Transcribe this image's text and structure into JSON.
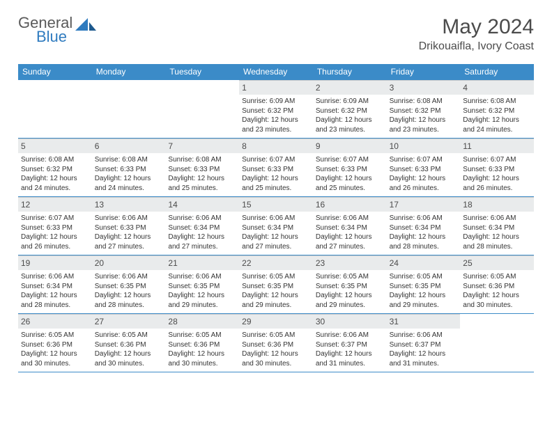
{
  "logo": {
    "general": "General",
    "blue": "Blue"
  },
  "title": "May 2024",
  "location": "Drikouaifla, Ivory Coast",
  "colors": {
    "header_bg": "#3b8bc8",
    "header_text": "#ffffff",
    "daynum_bg": "#e9ebec",
    "week_border": "#3b8bc8",
    "text": "#333333",
    "title_text": "#4b4b4b"
  },
  "day_names": [
    "Sunday",
    "Monday",
    "Tuesday",
    "Wednesday",
    "Thursday",
    "Friday",
    "Saturday"
  ],
  "weeks": [
    [
      {
        "empty": true
      },
      {
        "empty": true
      },
      {
        "empty": true
      },
      {
        "day": "1",
        "sunrise": "Sunrise: 6:09 AM",
        "sunset": "Sunset: 6:32 PM",
        "daylight": "Daylight: 12 hours and 23 minutes."
      },
      {
        "day": "2",
        "sunrise": "Sunrise: 6:09 AM",
        "sunset": "Sunset: 6:32 PM",
        "daylight": "Daylight: 12 hours and 23 minutes."
      },
      {
        "day": "3",
        "sunrise": "Sunrise: 6:08 AM",
        "sunset": "Sunset: 6:32 PM",
        "daylight": "Daylight: 12 hours and 23 minutes."
      },
      {
        "day": "4",
        "sunrise": "Sunrise: 6:08 AM",
        "sunset": "Sunset: 6:32 PM",
        "daylight": "Daylight: 12 hours and 24 minutes."
      }
    ],
    [
      {
        "day": "5",
        "sunrise": "Sunrise: 6:08 AM",
        "sunset": "Sunset: 6:32 PM",
        "daylight": "Daylight: 12 hours and 24 minutes."
      },
      {
        "day": "6",
        "sunrise": "Sunrise: 6:08 AM",
        "sunset": "Sunset: 6:33 PM",
        "daylight": "Daylight: 12 hours and 24 minutes."
      },
      {
        "day": "7",
        "sunrise": "Sunrise: 6:08 AM",
        "sunset": "Sunset: 6:33 PM",
        "daylight": "Daylight: 12 hours and 25 minutes."
      },
      {
        "day": "8",
        "sunrise": "Sunrise: 6:07 AM",
        "sunset": "Sunset: 6:33 PM",
        "daylight": "Daylight: 12 hours and 25 minutes."
      },
      {
        "day": "9",
        "sunrise": "Sunrise: 6:07 AM",
        "sunset": "Sunset: 6:33 PM",
        "daylight": "Daylight: 12 hours and 25 minutes."
      },
      {
        "day": "10",
        "sunrise": "Sunrise: 6:07 AM",
        "sunset": "Sunset: 6:33 PM",
        "daylight": "Daylight: 12 hours and 26 minutes."
      },
      {
        "day": "11",
        "sunrise": "Sunrise: 6:07 AM",
        "sunset": "Sunset: 6:33 PM",
        "daylight": "Daylight: 12 hours and 26 minutes."
      }
    ],
    [
      {
        "day": "12",
        "sunrise": "Sunrise: 6:07 AM",
        "sunset": "Sunset: 6:33 PM",
        "daylight": "Daylight: 12 hours and 26 minutes."
      },
      {
        "day": "13",
        "sunrise": "Sunrise: 6:06 AM",
        "sunset": "Sunset: 6:33 PM",
        "daylight": "Daylight: 12 hours and 27 minutes."
      },
      {
        "day": "14",
        "sunrise": "Sunrise: 6:06 AM",
        "sunset": "Sunset: 6:34 PM",
        "daylight": "Daylight: 12 hours and 27 minutes."
      },
      {
        "day": "15",
        "sunrise": "Sunrise: 6:06 AM",
        "sunset": "Sunset: 6:34 PM",
        "daylight": "Daylight: 12 hours and 27 minutes."
      },
      {
        "day": "16",
        "sunrise": "Sunrise: 6:06 AM",
        "sunset": "Sunset: 6:34 PM",
        "daylight": "Daylight: 12 hours and 27 minutes."
      },
      {
        "day": "17",
        "sunrise": "Sunrise: 6:06 AM",
        "sunset": "Sunset: 6:34 PM",
        "daylight": "Daylight: 12 hours and 28 minutes."
      },
      {
        "day": "18",
        "sunrise": "Sunrise: 6:06 AM",
        "sunset": "Sunset: 6:34 PM",
        "daylight": "Daylight: 12 hours and 28 minutes."
      }
    ],
    [
      {
        "day": "19",
        "sunrise": "Sunrise: 6:06 AM",
        "sunset": "Sunset: 6:34 PM",
        "daylight": "Daylight: 12 hours and 28 minutes."
      },
      {
        "day": "20",
        "sunrise": "Sunrise: 6:06 AM",
        "sunset": "Sunset: 6:35 PM",
        "daylight": "Daylight: 12 hours and 28 minutes."
      },
      {
        "day": "21",
        "sunrise": "Sunrise: 6:06 AM",
        "sunset": "Sunset: 6:35 PM",
        "daylight": "Daylight: 12 hours and 29 minutes."
      },
      {
        "day": "22",
        "sunrise": "Sunrise: 6:05 AM",
        "sunset": "Sunset: 6:35 PM",
        "daylight": "Daylight: 12 hours and 29 minutes."
      },
      {
        "day": "23",
        "sunrise": "Sunrise: 6:05 AM",
        "sunset": "Sunset: 6:35 PM",
        "daylight": "Daylight: 12 hours and 29 minutes."
      },
      {
        "day": "24",
        "sunrise": "Sunrise: 6:05 AM",
        "sunset": "Sunset: 6:35 PM",
        "daylight": "Daylight: 12 hours and 29 minutes."
      },
      {
        "day": "25",
        "sunrise": "Sunrise: 6:05 AM",
        "sunset": "Sunset: 6:36 PM",
        "daylight": "Daylight: 12 hours and 30 minutes."
      }
    ],
    [
      {
        "day": "26",
        "sunrise": "Sunrise: 6:05 AM",
        "sunset": "Sunset: 6:36 PM",
        "daylight": "Daylight: 12 hours and 30 minutes."
      },
      {
        "day": "27",
        "sunrise": "Sunrise: 6:05 AM",
        "sunset": "Sunset: 6:36 PM",
        "daylight": "Daylight: 12 hours and 30 minutes."
      },
      {
        "day": "28",
        "sunrise": "Sunrise: 6:05 AM",
        "sunset": "Sunset: 6:36 PM",
        "daylight": "Daylight: 12 hours and 30 minutes."
      },
      {
        "day": "29",
        "sunrise": "Sunrise: 6:05 AM",
        "sunset": "Sunset: 6:36 PM",
        "daylight": "Daylight: 12 hours and 30 minutes."
      },
      {
        "day": "30",
        "sunrise": "Sunrise: 6:06 AM",
        "sunset": "Sunset: 6:37 PM",
        "daylight": "Daylight: 12 hours and 31 minutes."
      },
      {
        "day": "31",
        "sunrise": "Sunrise: 6:06 AM",
        "sunset": "Sunset: 6:37 PM",
        "daylight": "Daylight: 12 hours and 31 minutes."
      },
      {
        "empty": true
      }
    ]
  ]
}
